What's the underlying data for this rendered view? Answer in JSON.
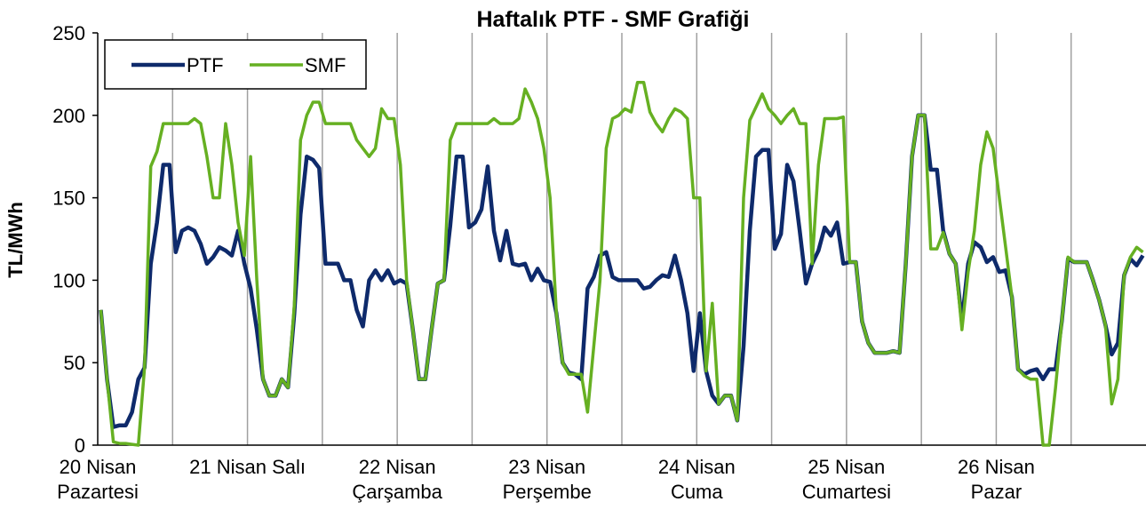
{
  "chart_data": {
    "type": "line",
    "title": "Haftalık PTF - SMF Grafiği",
    "y_label": "TL/MWh",
    "categories": [
      "20 Nisan\nPazartesi",
      null,
      null,
      null,
      null,
      null,
      null,
      null,
      null,
      null,
      null,
      null,
      null,
      null,
      null,
      null,
      null,
      null,
      null,
      null,
      null,
      null,
      null,
      null,
      "21 Nisan Salı",
      null,
      null,
      null,
      null,
      null,
      null,
      null,
      null,
      null,
      null,
      null,
      null,
      null,
      null,
      null,
      null,
      null,
      null,
      null,
      null,
      null,
      null,
      null,
      "22 Nisan\nÇarşamba",
      null,
      null,
      null,
      null,
      null,
      null,
      null,
      null,
      null,
      null,
      null,
      null,
      null,
      null,
      null,
      null,
      null,
      null,
      null,
      null,
      null,
      null,
      null,
      "23 Nisan\nPerşembe",
      null,
      null,
      null,
      null,
      null,
      null,
      null,
      null,
      null,
      null,
      null,
      null,
      null,
      null,
      null,
      null,
      null,
      null,
      null,
      null,
      null,
      null,
      null,
      "24 Nisan\nCuma",
      null,
      null,
      null,
      null,
      null,
      null,
      null,
      null,
      null,
      null,
      null,
      null,
      null,
      null,
      null,
      null,
      null,
      null,
      null,
      null,
      null,
      null,
      null,
      "25 Nisan\nCumartesi",
      null,
      null,
      null,
      null,
      null,
      null,
      null,
      null,
      null,
      null,
      null,
      null,
      null,
      null,
      null,
      null,
      null,
      null,
      null,
      null,
      null,
      null,
      null,
      "26 Nisan\nPazar",
      null,
      null,
      null,
      null,
      null,
      null,
      null,
      null,
      null,
      null,
      null,
      null,
      null,
      null,
      null,
      null,
      null,
      null,
      null,
      null,
      null,
      null,
      null
    ],
    "series": [
      {
        "name": "PTF",
        "color": "#0e2a6b",
        "values": [
          82,
          40,
          11,
          12,
          12,
          20,
          40,
          47,
          110,
          135,
          170,
          170,
          117,
          130,
          132,
          130,
          122,
          110,
          114,
          120,
          118,
          115,
          130,
          110,
          95,
          70,
          40,
          30,
          30,
          40,
          35,
          80,
          140,
          175,
          173,
          168,
          110,
          110,
          110,
          100,
          100,
          82,
          72,
          100,
          106,
          100,
          106,
          98,
          100,
          98,
          70,
          40,
          40,
          70,
          98,
          100,
          133,
          175,
          175,
          132,
          135,
          143,
          169,
          130,
          112,
          130,
          110,
          109,
          110,
          100,
          107,
          100,
          99,
          80,
          50,
          44,
          43,
          40,
          95,
          102,
          115,
          117,
          102,
          100,
          100,
          100,
          100,
          95,
          96,
          100,
          103,
          102,
          115,
          100,
          80,
          45,
          80,
          45,
          30,
          25,
          30,
          30,
          15,
          60,
          130,
          175,
          179,
          179,
          119,
          128,
          170,
          160,
          130,
          98,
          110,
          118,
          132,
          127,
          135,
          110,
          111,
          111,
          75,
          62,
          56,
          56,
          56,
          57,
          56,
          110,
          175,
          200,
          200,
          167,
          167,
          130,
          116,
          110,
          75,
          110,
          123,
          120,
          111,
          114,
          105,
          106,
          90,
          46,
          43,
          45,
          46,
          40,
          46,
          46,
          75,
          113,
          111,
          111,
          111,
          100,
          88,
          73,
          55,
          62,
          103,
          113,
          109,
          115
        ]
      },
      {
        "name": "SMF",
        "color": "#66b022",
        "values": [
          82,
          40,
          2,
          1,
          1,
          0.5,
          0,
          47,
          169,
          178,
          195,
          195,
          195,
          195,
          195,
          198,
          195,
          175,
          150,
          150,
          195,
          170,
          135,
          115,
          175,
          100,
          40,
          30,
          30,
          40,
          35,
          85,
          185,
          200,
          208,
          208,
          195,
          195,
          195,
          195,
          195,
          185,
          180,
          175,
          180,
          204,
          198,
          198,
          170,
          100,
          70,
          40,
          40,
          70,
          98,
          100,
          185,
          195,
          195,
          195,
          195,
          195,
          195,
          198,
          195,
          195,
          195,
          198,
          216,
          208,
          198,
          180,
          150,
          80,
          50,
          43,
          43,
          43,
          20,
          60,
          100,
          180,
          198,
          200,
          204,
          202,
          220,
          220,
          202,
          195,
          190,
          198,
          204,
          202,
          198,
          150,
          150,
          45,
          86,
          25,
          30,
          30,
          15,
          150,
          197,
          205,
          213,
          204,
          200,
          195,
          200,
          204,
          195,
          195,
          110,
          170,
          198,
          198,
          198,
          199,
          111,
          111,
          75,
          62,
          56,
          56,
          56,
          57,
          56,
          110,
          175,
          200,
          200,
          119,
          119,
          129,
          116,
          110,
          70,
          105,
          130,
          170,
          190,
          180,
          150,
          120,
          90,
          46,
          42,
          40,
          40,
          0,
          0,
          35,
          75,
          114,
          111,
          111,
          111,
          100,
          88,
          73,
          25,
          40,
          103,
          114,
          120,
          117
        ]
      }
    ],
    "ylim": [
      0,
      250
    ],
    "yticks": [
      0,
      50,
      100,
      150,
      200,
      250
    ],
    "legend": "upper left"
  }
}
